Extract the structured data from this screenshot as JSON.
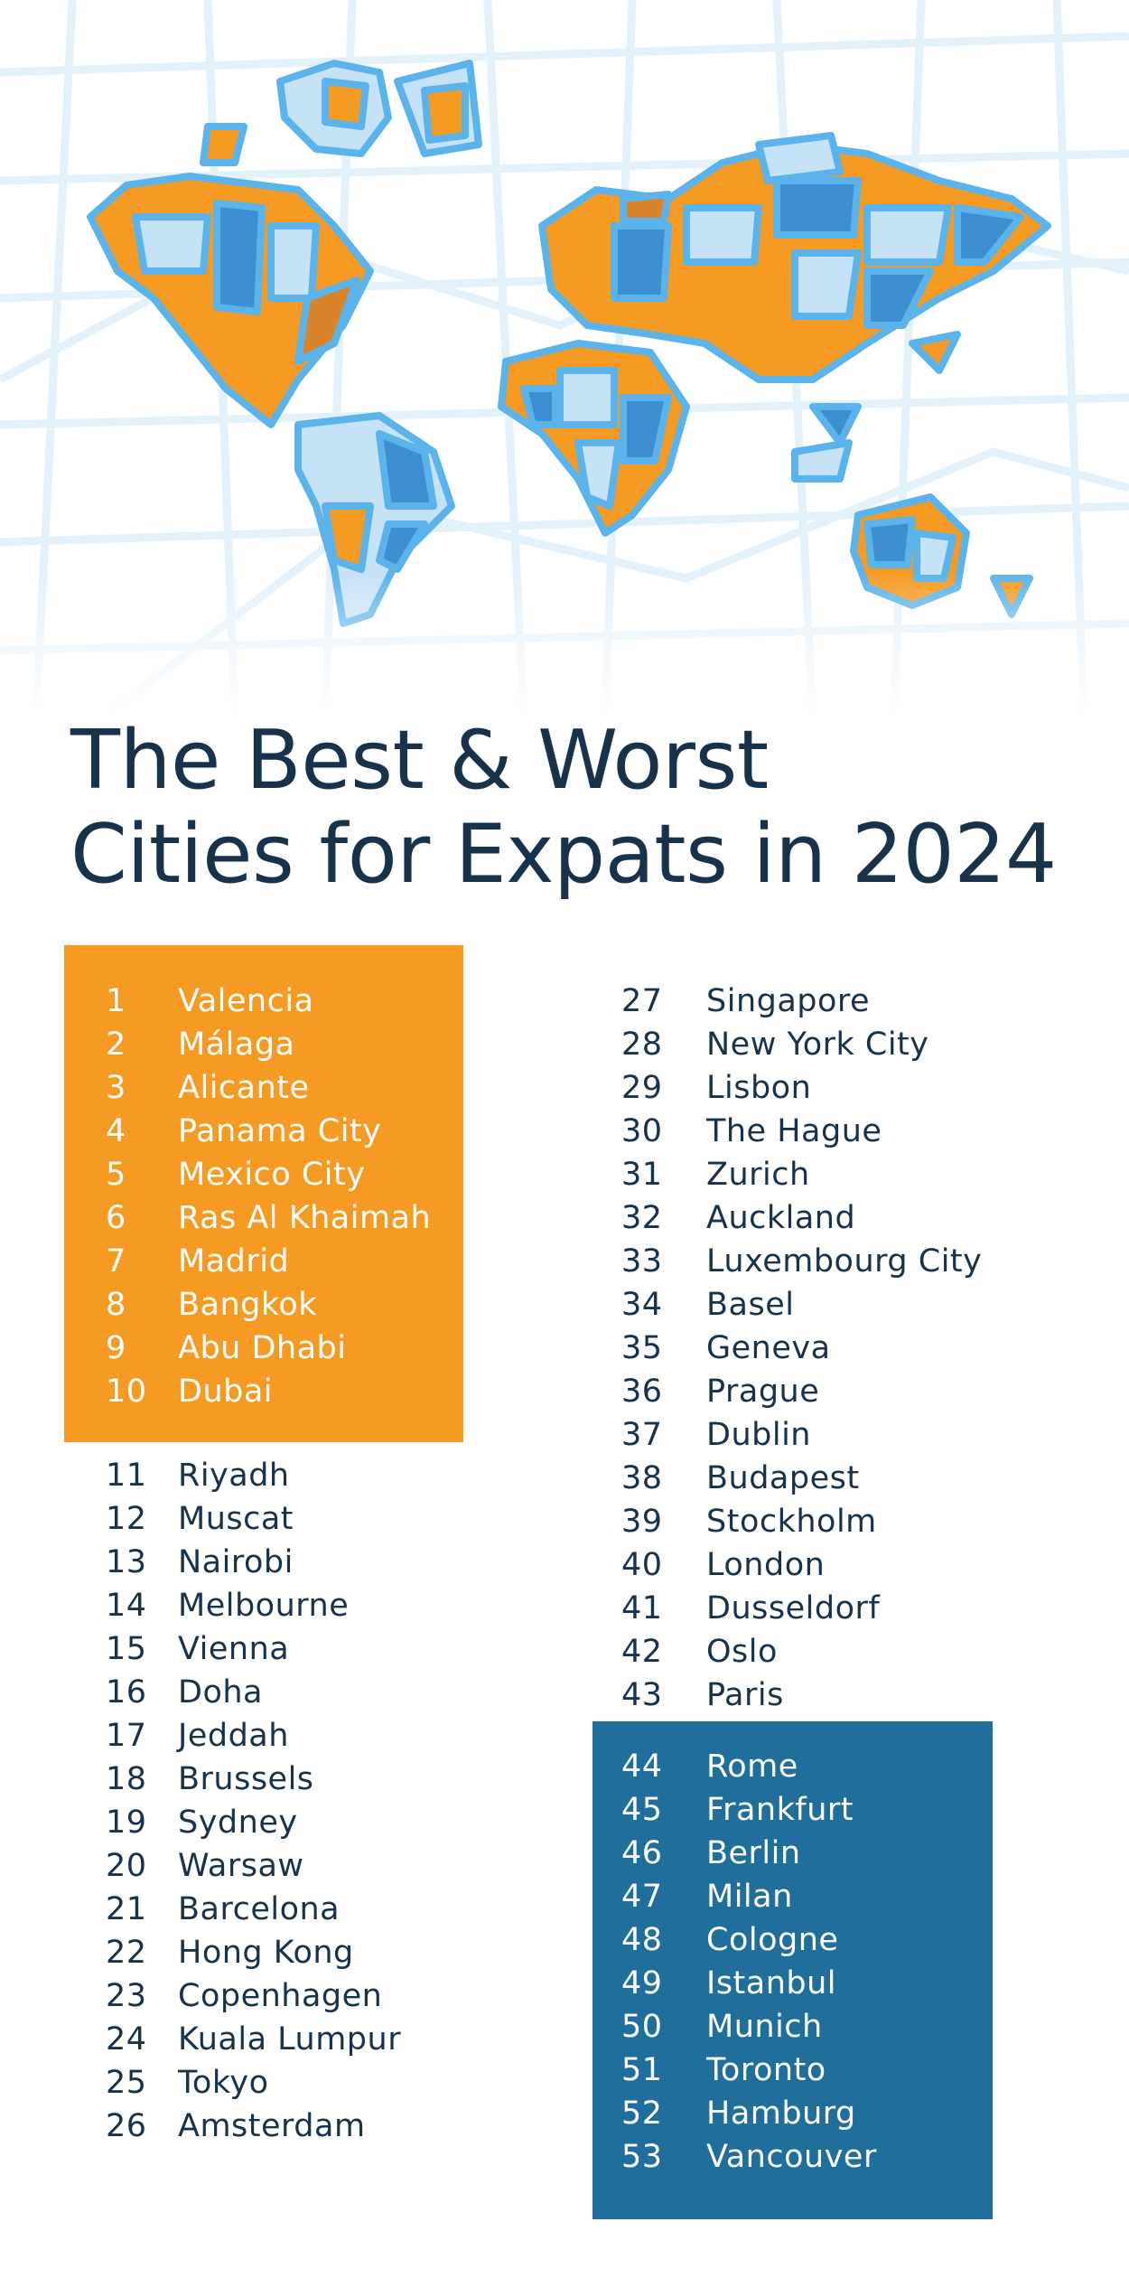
{
  "page": {
    "title_line1": "The Best & Worst",
    "title_line2": "Cities for Expats in 2024"
  },
  "colors": {
    "best_box": "#f59a23",
    "worst_box": "#1f6e9c",
    "text": "#17324a",
    "map_orange": "#f59a23",
    "map_blue": "#3d8fd1",
    "map_light_blue": "#c6e2f7",
    "map_outline": "#5ab3ea"
  },
  "hero": {
    "icon": "world-map-illustration"
  },
  "rankings": {
    "best": [
      {
        "rank": "1",
        "city": "Valencia"
      },
      {
        "rank": "2",
        "city": "Málaga"
      },
      {
        "rank": "3",
        "city": "Alicante"
      },
      {
        "rank": "4",
        "city": "Panama City"
      },
      {
        "rank": "5",
        "city": "Mexico City"
      },
      {
        "rank": "6",
        "city": "Ras Al Khaimah"
      },
      {
        "rank": "7",
        "city": "Madrid"
      },
      {
        "rank": "8",
        "city": "Bangkok"
      },
      {
        "rank": "9",
        "city": "Abu Dhabi"
      },
      {
        "rank": "10",
        "city": "Dubai"
      }
    ],
    "middle_left": [
      {
        "rank": "11",
        "city": "Riyadh"
      },
      {
        "rank": "12",
        "city": "Muscat"
      },
      {
        "rank": "13",
        "city": "Nairobi"
      },
      {
        "rank": "14",
        "city": "Melbourne"
      },
      {
        "rank": "15",
        "city": "Vienna"
      },
      {
        "rank": "16",
        "city": "Doha"
      },
      {
        "rank": "17",
        "city": "Jeddah"
      },
      {
        "rank": "18",
        "city": "Brussels"
      },
      {
        "rank": "19",
        "city": "Sydney"
      },
      {
        "rank": "20",
        "city": "Warsaw"
      },
      {
        "rank": "21",
        "city": "Barcelona"
      },
      {
        "rank": "22",
        "city": "Hong Kong"
      },
      {
        "rank": "23",
        "city": "Copenhagen"
      },
      {
        "rank": "24",
        "city": "Kuala Lumpur"
      },
      {
        "rank": "25",
        "city": "Tokyo"
      },
      {
        "rank": "26",
        "city": "Amsterdam"
      }
    ],
    "middle_right": [
      {
        "rank": "27",
        "city": "Singapore"
      },
      {
        "rank": "28",
        "city": "New York City"
      },
      {
        "rank": "29",
        "city": "Lisbon"
      },
      {
        "rank": "30",
        "city": "The Hague"
      },
      {
        "rank": "31",
        "city": "Zurich"
      },
      {
        "rank": "32",
        "city": "Auckland"
      },
      {
        "rank": "33",
        "city": "Luxembourg City"
      },
      {
        "rank": "34",
        "city": "Basel"
      },
      {
        "rank": "35",
        "city": "Geneva"
      },
      {
        "rank": "36",
        "city": "Prague"
      },
      {
        "rank": "37",
        "city": "Dublin"
      },
      {
        "rank": "38",
        "city": "Budapest"
      },
      {
        "rank": "39",
        "city": "Stockholm"
      },
      {
        "rank": "40",
        "city": "London"
      },
      {
        "rank": "41",
        "city": "Dusseldorf"
      },
      {
        "rank": "42",
        "city": "Oslo"
      },
      {
        "rank": "43",
        "city": "Paris"
      }
    ],
    "worst": [
      {
        "rank": "44",
        "city": "Rome"
      },
      {
        "rank": "45",
        "city": "Frankfurt"
      },
      {
        "rank": "46",
        "city": "Berlin"
      },
      {
        "rank": "47",
        "city": "Milan"
      },
      {
        "rank": "48",
        "city": "Cologne"
      },
      {
        "rank": "49",
        "city": "Istanbul"
      },
      {
        "rank": "50",
        "city": "Munich"
      },
      {
        "rank": "51",
        "city": "Toronto"
      },
      {
        "rank": "52",
        "city": "Hamburg"
      },
      {
        "rank": "53",
        "city": "Vancouver"
      }
    ]
  }
}
